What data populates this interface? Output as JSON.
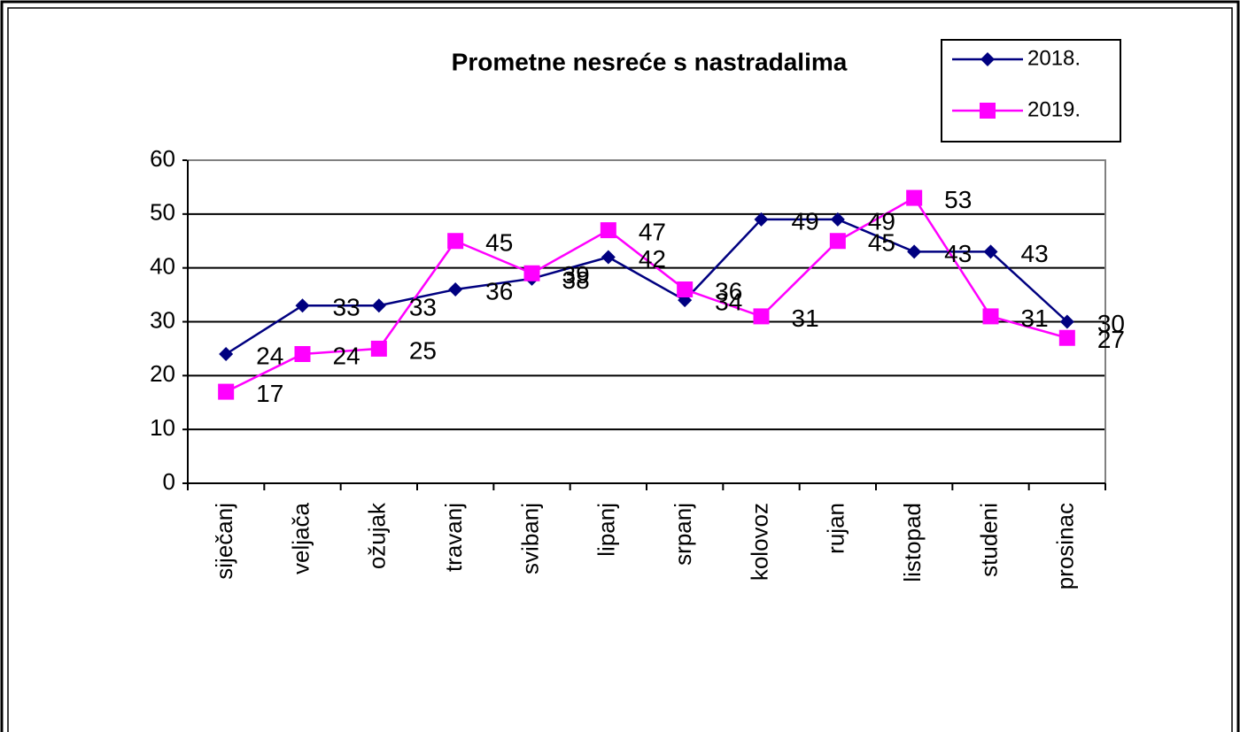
{
  "chart_data": {
    "type": "line",
    "title": "Prometne nesreće s nastradalima",
    "categories": [
      "siječanj",
      "veljača",
      "ožujak",
      "travanj",
      "svibanj",
      "lipanj",
      "srpanj",
      "kolovoz",
      "rujan",
      "listopad",
      "studeni",
      "prosinac"
    ],
    "series": [
      {
        "name": "2018.",
        "color": "#000080",
        "marker": "diamond",
        "values": [
          24,
          33,
          33,
          36,
          38,
          42,
          34,
          49,
          49,
          43,
          43,
          30
        ]
      },
      {
        "name": "2019.",
        "color": "#ff00ff",
        "marker": "square",
        "values": [
          17,
          24,
          25,
          45,
          39,
          47,
          36,
          31,
          45,
          53,
          31,
          27
        ]
      }
    ],
    "ylim": [
      0,
      60
    ],
    "yticks": [
      0,
      10,
      20,
      30,
      40,
      50,
      60
    ],
    "grid": true,
    "legend": "top-right"
  }
}
